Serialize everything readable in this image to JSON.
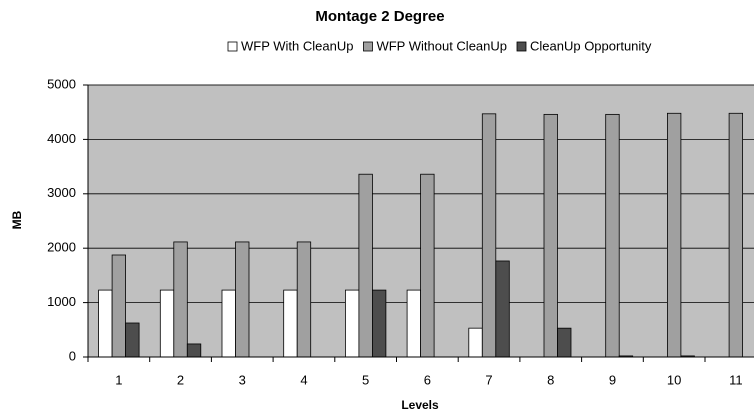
{
  "chart_data": {
    "type": "bar",
    "title": "Montage 2 Degree",
    "x_label": "Levels",
    "y_label": "MB",
    "categories": [
      "1",
      "2",
      "3",
      "4",
      "5",
      "6",
      "7",
      "8",
      "9",
      "10",
      "11"
    ],
    "series": [
      {
        "name": "WFP With CleanUp",
        "color": "#ffffff",
        "values": [
          1230,
          1230,
          1230,
          1230,
          1230,
          1230,
          530,
          0,
          0,
          0,
          0
        ]
      },
      {
        "name": "WFP Without CleanUp",
        "color": "#a0a0a0",
        "values": [
          1875,
          2115,
          2115,
          2115,
          3360,
          3360,
          4470,
          4460,
          4460,
          4480,
          4480
        ]
      },
      {
        "name": "CleanUp Opportunity",
        "color": "#4d4d4d",
        "values": [
          625,
          240,
          0,
          0,
          1230,
          0,
          1765,
          530,
          20,
          20,
          0
        ]
      }
    ],
    "ylim": [
      0,
      5000
    ],
    "yticks": [
      0,
      1000,
      2000,
      3000,
      4000,
      5000
    ],
    "grid": true
  }
}
